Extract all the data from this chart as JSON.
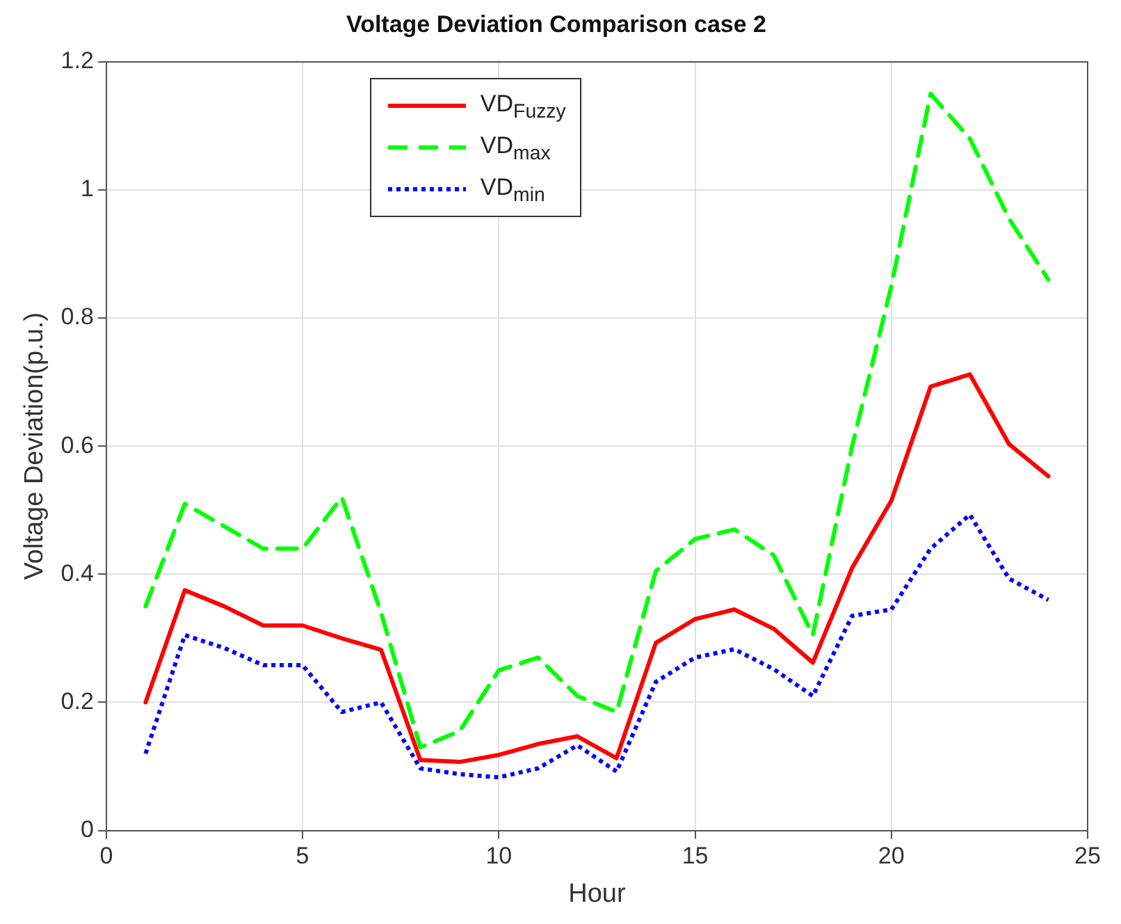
{
  "chart_data": {
    "type": "line",
    "title": "Voltage Deviation Comparison case 2",
    "xlabel": "Hour",
    "ylabel": "Voltage Deviation(p.u.)",
    "x": [
      1,
      2,
      3,
      4,
      5,
      6,
      7,
      8,
      9,
      10,
      11,
      12,
      13,
      14,
      15,
      16,
      17,
      18,
      19,
      20,
      21,
      22,
      23,
      24
    ],
    "series": [
      {
        "name": "VD$_{Fuzzy}$",
        "color": "#ff0000",
        "line_style": "solid",
        "values": [
          0.2,
          0.375,
          0.35,
          0.32,
          0.32,
          0.3,
          0.282,
          0.11,
          0.107,
          0.118,
          0.135,
          0.147,
          0.113,
          0.293,
          0.33,
          0.345,
          0.315,
          0.262,
          0.41,
          0.515,
          0.693,
          0.712,
          0.603,
          0.553
        ]
      },
      {
        "name": "VD$_{max}$",
        "color": "#00ff00",
        "line_style": "dashed",
        "values": [
          0.35,
          0.51,
          0.475,
          0.44,
          0.44,
          0.52,
          0.34,
          0.13,
          0.155,
          0.25,
          0.27,
          0.21,
          0.185,
          0.405,
          0.455,
          0.47,
          0.43,
          0.305,
          0.6,
          0.85,
          1.15,
          1.08,
          0.955,
          0.86
        ]
      },
      {
        "name": "VD$_{min}$",
        "color": "#0000ff",
        "line_style": "dotted",
        "values": [
          0.12,
          0.305,
          0.285,
          0.258,
          0.258,
          0.185,
          0.2,
          0.097,
          0.088,
          0.083,
          0.097,
          0.133,
          0.092,
          0.232,
          0.27,
          0.283,
          0.252,
          0.21,
          0.335,
          0.345,
          0.44,
          0.493,
          0.393,
          0.36
        ]
      }
    ],
    "xlim": [
      0,
      25
    ],
    "xticks": [
      0,
      5,
      10,
      15,
      20,
      25
    ],
    "ylim": [
      0,
      1.2
    ],
    "yticks": [
      0,
      0.2,
      0.4,
      0.6,
      0.8,
      1,
      1.2
    ],
    "grid": true,
    "legend": "top left",
    "marker": "none"
  }
}
